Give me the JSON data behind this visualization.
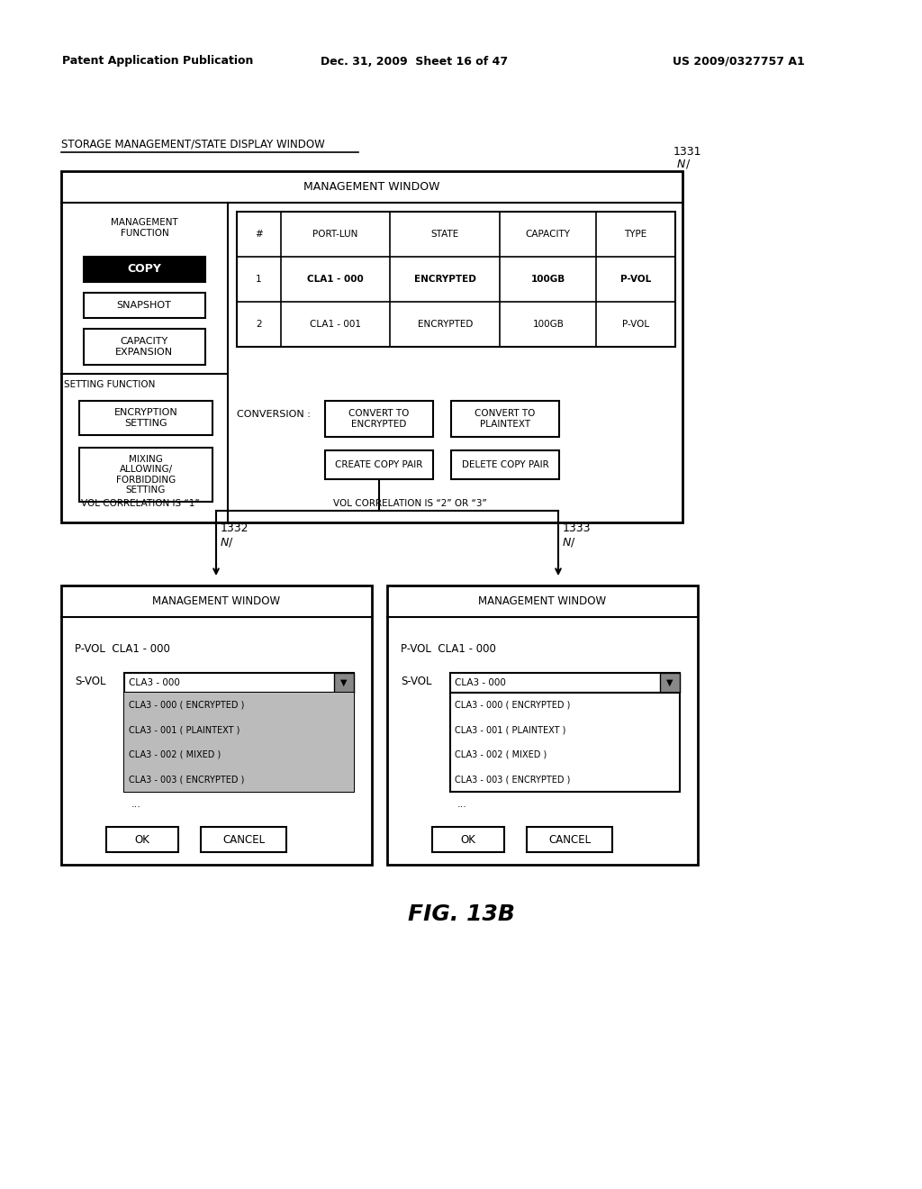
{
  "header_left": "Patent Application Publication",
  "header_mid": "Dec. 31, 2009  Sheet 16 of 47",
  "header_right": "US 2009/0327757 A1",
  "title_label": "STORAGE MANAGEMENT/STATE DISPLAY WINDOW",
  "ref_1331": "1331",
  "ref_1332": "1332",
  "ref_1333": "1333",
  "fig_label": "FIG. 13B",
  "mgmt_window_title": "MANAGEMENT WINDOW",
  "mgmt_func_label": "MANAGEMENT\nFUNCTION",
  "copy_btn": "COPY",
  "snapshot_btn": "SNAPSHOT",
  "capacity_btn": "CAPACITY\nEXPANSION",
  "setting_func_label": "SETTING FUNCTION",
  "encryption_btn": "ENCRYPTION\nSETTING",
  "mixing_btn": "MIXING\nALLOWING/\nFORBIDDING\nSETTING",
  "table_headers": [
    "#",
    "PORT-LUN",
    "STATE",
    "CAPACITY",
    "TYPE"
  ],
  "table_row1": [
    "1",
    "CLA1 - 000",
    "ENCRYPTED",
    "100GB",
    "P-VOL"
  ],
  "table_row2": [
    "2",
    "CLA1 - 001",
    "ENCRYPTED",
    "100GB",
    "P-VOL"
  ],
  "table_row1_bold": [
    false,
    true,
    true,
    true,
    true
  ],
  "table_row2_bold": [
    false,
    false,
    false,
    false,
    false
  ],
  "conversion_label": "CONVERSION :",
  "convert_encrypted_btn": "CONVERT TO\nENCRYPTED",
  "convert_plaintext_btn": "CONVERT TO\nPLAINTEXT",
  "create_copy_btn": "CREATE COPY PAIR",
  "delete_copy_btn": "DELETE COPY PAIR",
  "vol_corr_1": "VOL CORRELATION IS “1”",
  "vol_corr_23": "VOL CORRELATION IS “2” OR “3”",
  "win1332_title": "MANAGEMENT WINDOW",
  "win1332_pvol": "P-VOL  CLA1 - 000",
  "win1332_svol": "S-VOL",
  "win1332_dropdown": "CLA3 - 000",
  "win1332_list": [
    "CLA3 - 000 ( ENCRYPTED )",
    "CLA3 - 001 ( PLAINTEXT )",
    "CLA3 - 002 ( MIXED )",
    "CLA3 - 003 ( ENCRYPTED )"
  ],
  "win1332_ok": "OK",
  "win1332_cancel": "CANCEL",
  "win1333_title": "MANAGEMENT WINDOW",
  "win1333_pvol": "P-VOL  CLA1 - 000",
  "win1333_svol": "S-VOL",
  "win1333_dropdown": "CLA3 - 000",
  "win1333_list": [
    "CLA3 - 000 ( ENCRYPTED )",
    "CLA3 - 001 ( PLAINTEXT )",
    "CLA3 - 002 ( MIXED )",
    "CLA3 - 003 ( ENCRYPTED )"
  ],
  "win1333_ok": "OK",
  "win1333_cancel": "CANCEL",
  "background": "#ffffff",
  "highlight_color": "#bbbbbb"
}
